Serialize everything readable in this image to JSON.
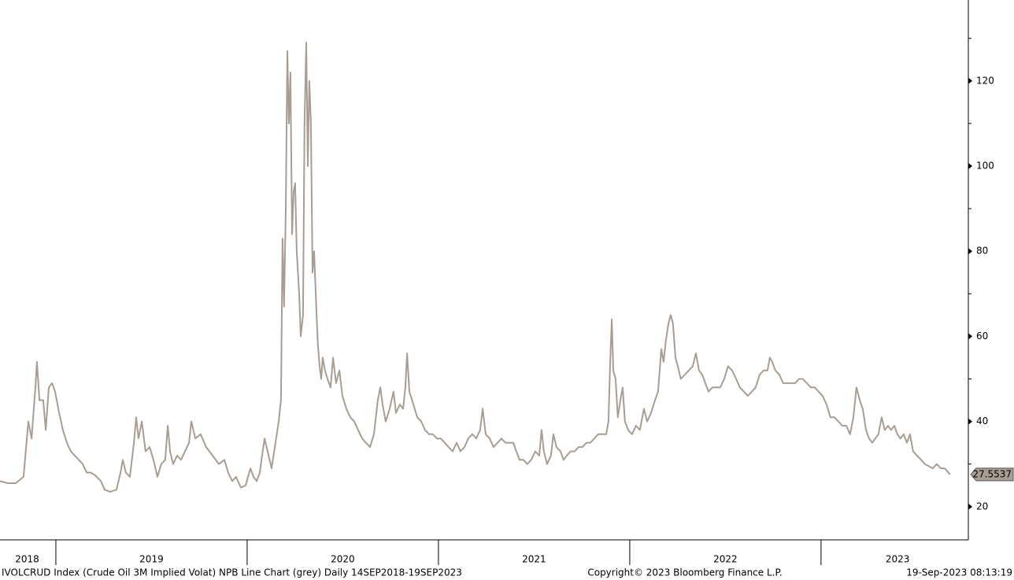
{
  "chart_data": {
    "type": "line",
    "title": "IVOLCRUD Index (Crude Oil 3M Implied Volat) NPB Line Chart (grey)  Daily 14SEP2018-19SEP2023",
    "copyright": "Copyright© 2023 Bloomberg Finance L.P.",
    "timestamp": "19-Sep-2023 08:13:19",
    "x": [
      2018.708,
      2018.749,
      2018.79,
      2018.831,
      2018.856,
      2018.873,
      2018.893,
      2018.901,
      2018.914,
      2018.934,
      2018.947,
      2018.963,
      2018.98,
      2018.996,
      2019.017,
      2019.037,
      2019.058,
      2019.078,
      2019.099,
      2019.12,
      2019.14,
      2019.161,
      2019.181,
      2019.202,
      2019.235,
      2019.255,
      2019.284,
      2019.317,
      2019.338,
      2019.35,
      2019.366,
      2019.387,
      2019.408,
      2019.42,
      2019.432,
      2019.449,
      2019.469,
      2019.49,
      2019.51,
      2019.531,
      2019.551,
      2019.572,
      2019.585,
      2019.597,
      2019.613,
      2019.634,
      2019.654,
      2019.675,
      2019.696,
      2019.708,
      2019.729,
      2019.757,
      2019.786,
      2019.819,
      2019.852,
      2019.881,
      2019.901,
      2019.922,
      2019.942,
      2019.967,
      2019.992,
      2020.017,
      2020.033,
      2020.05,
      2020.066,
      2020.078,
      2020.091,
      2020.107,
      2020.128,
      2020.148,
      2020.165,
      2020.177,
      2020.185,
      2020.193,
      2020.202,
      2020.21,
      2020.218,
      2020.226,
      2020.235,
      2020.243,
      2020.251,
      2020.259,
      2020.272,
      2020.28,
      2020.292,
      2020.3,
      2020.309,
      2020.317,
      2020.325,
      2020.333,
      2020.342,
      2020.35,
      2020.362,
      2020.37,
      2020.379,
      2020.387,
      2020.395,
      2020.407,
      2020.42,
      2020.436,
      2020.449,
      2020.465,
      2020.482,
      2020.498,
      2020.519,
      2020.539,
      2020.56,
      2020.58,
      2020.601,
      2020.621,
      2020.642,
      2020.663,
      2020.683,
      2020.696,
      2020.708,
      2020.724,
      2020.745,
      2020.765,
      2020.778,
      2020.798,
      2020.815,
      2020.827,
      2020.836,
      2020.848,
      2020.869,
      2020.889,
      2020.91,
      2020.93,
      2020.951,
      2020.971,
      2020.992,
      2021.012,
      2021.033,
      2021.053,
      2021.074,
      2021.095,
      2021.115,
      2021.136,
      2021.156,
      2021.177,
      2021.198,
      2021.218,
      2021.231,
      2021.247,
      2021.268,
      2021.288,
      2021.309,
      2021.329,
      2021.35,
      2021.37,
      2021.391,
      2021.407,
      2021.424,
      2021.444,
      2021.465,
      2021.485,
      2021.506,
      2021.527,
      2021.539,
      2021.551,
      2021.568,
      2021.588,
      2021.601,
      2021.617,
      2021.638,
      2021.654,
      2021.671,
      2021.691,
      2021.712,
      2021.733,
      2021.753,
      2021.774,
      2021.794,
      2021.815,
      2021.835,
      2021.856,
      2021.877,
      2021.889,
      2021.897,
      2021.906,
      2021.914,
      2021.926,
      2021.938,
      2021.951,
      2021.963,
      2021.975,
      2021.992,
      2022.012,
      2022.033,
      2022.053,
      2022.074,
      2022.091,
      2022.111,
      2022.132,
      2022.148,
      2022.165,
      2022.177,
      2022.189,
      2022.202,
      2022.214,
      2022.226,
      2022.239,
      2022.251,
      2022.267,
      2022.288,
      2022.309,
      2022.329,
      2022.346,
      2022.362,
      2022.379,
      2022.395,
      2022.412,
      2022.432,
      2022.453,
      2022.473,
      2022.494,
      2022.514,
      2022.535,
      2022.556,
      2022.576,
      2022.597,
      2022.617,
      2022.638,
      2022.658,
      2022.679,
      2022.7,
      2022.72,
      2022.732,
      2022.745,
      2022.761,
      2022.782,
      2022.802,
      2022.823,
      2022.844,
      2022.864,
      2022.885,
      2022.905,
      2022.926,
      2022.946,
      2022.967,
      2022.988,
      2023.008,
      2023.029,
      2023.049,
      2023.07,
      2023.091,
      2023.111,
      2023.132,
      2023.152,
      2023.169,
      2023.185,
      2023.202,
      2023.218,
      2023.235,
      2023.251,
      2023.267,
      2023.284,
      2023.3,
      2023.317,
      2023.333,
      2023.35,
      2023.366,
      2023.383,
      2023.399,
      2023.415,
      2023.432,
      2023.449,
      2023.465,
      2023.481,
      2023.502,
      2023.523,
      2023.543,
      2023.564,
      2023.584,
      2023.605,
      2023.626,
      2023.646,
      2023.675
    ],
    "series": [
      {
        "color": "#a89d93",
        "values": [
          26,
          25.5,
          25.5,
          27,
          40,
          36,
          48,
          54,
          45,
          45,
          38,
          48,
          49,
          47,
          42,
          38,
          35,
          33,
          32,
          31,
          30,
          28,
          28,
          27.5,
          26,
          24,
          23.5,
          24,
          28,
          31,
          28,
          27,
          35,
          41,
          36,
          40,
          33,
          34,
          31,
          27,
          30,
          31,
          39,
          33,
          30,
          32,
          31,
          33,
          35,
          40,
          36,
          37,
          34,
          32,
          30,
          31,
          28,
          26,
          27,
          24.5,
          25,
          29,
          27,
          26,
          28,
          32,
          36,
          33,
          29,
          35,
          40,
          45,
          83,
          67,
          90,
          127,
          110,
          122,
          84,
          94,
          96,
          80,
          70,
          60,
          65,
          110,
          129,
          100,
          120,
          110,
          75,
          80,
          66,
          58,
          53,
          50,
          55,
          52,
          50,
          48,
          55,
          49,
          52,
          46,
          43,
          41,
          40,
          38,
          36,
          35,
          34,
          37,
          45,
          48,
          44,
          40,
          43,
          47,
          42,
          44,
          43,
          48,
          56,
          47,
          44,
          41,
          40,
          38,
          37,
          37,
          36,
          36,
          35,
          34,
          33,
          35,
          33,
          34,
          36,
          37,
          36,
          38,
          43,
          37,
          36,
          34,
          35,
          36,
          35,
          35,
          35,
          33,
          31,
          31,
          30,
          31,
          33,
          32,
          38,
          33,
          30,
          32,
          37,
          34,
          33,
          31,
          32,
          33,
          33,
          34,
          34,
          35,
          35,
          36,
          37,
          37,
          37,
          40,
          53,
          64,
          52,
          50,
          41,
          45,
          48,
          40,
          38,
          37,
          39,
          38,
          43,
          40,
          42,
          45,
          47,
          57,
          54,
          59,
          63,
          65,
          63,
          55,
          53,
          50,
          51,
          52,
          53,
          56,
          52,
          51,
          49,
          47,
          48,
          48,
          48,
          50,
          53,
          52,
          50,
          48,
          47,
          46,
          47,
          48,
          51,
          52,
          52,
          55,
          54,
          52,
          51,
          49,
          49,
          49,
          49,
          50,
          50,
          49,
          48,
          48,
          47,
          46,
          44,
          41,
          41,
          40,
          39,
          39,
          37,
          41,
          48,
          45,
          43,
          38,
          36,
          35,
          36,
          37,
          41,
          38,
          39,
          38,
          39,
          37,
          36,
          37,
          35,
          37,
          33,
          32,
          31,
          30,
          29.5,
          29,
          30,
          29,
          29,
          27.5537
        ]
      }
    ],
    "last_value": 27.5537,
    "xlim": [
      2018.708,
      2023.77
    ],
    "ylim": [
      12.2,
      139
    ],
    "xticks": [
      {
        "value": 2018.85,
        "label": "2018"
      },
      {
        "value": 2019.5,
        "label": "2019"
      },
      {
        "value": 2020.5,
        "label": "2020"
      },
      {
        "value": 2021.5,
        "label": "2021"
      },
      {
        "value": 2022.5,
        "label": "2022"
      },
      {
        "value": 2023.4,
        "label": "2023"
      }
    ],
    "year_boundaries": [
      2019,
      2020,
      2021,
      2022,
      2023
    ],
    "yticks": [
      20,
      40,
      60,
      80,
      100,
      120
    ],
    "y_minor_ticks": [
      30,
      50,
      70,
      90,
      110,
      130
    ]
  }
}
